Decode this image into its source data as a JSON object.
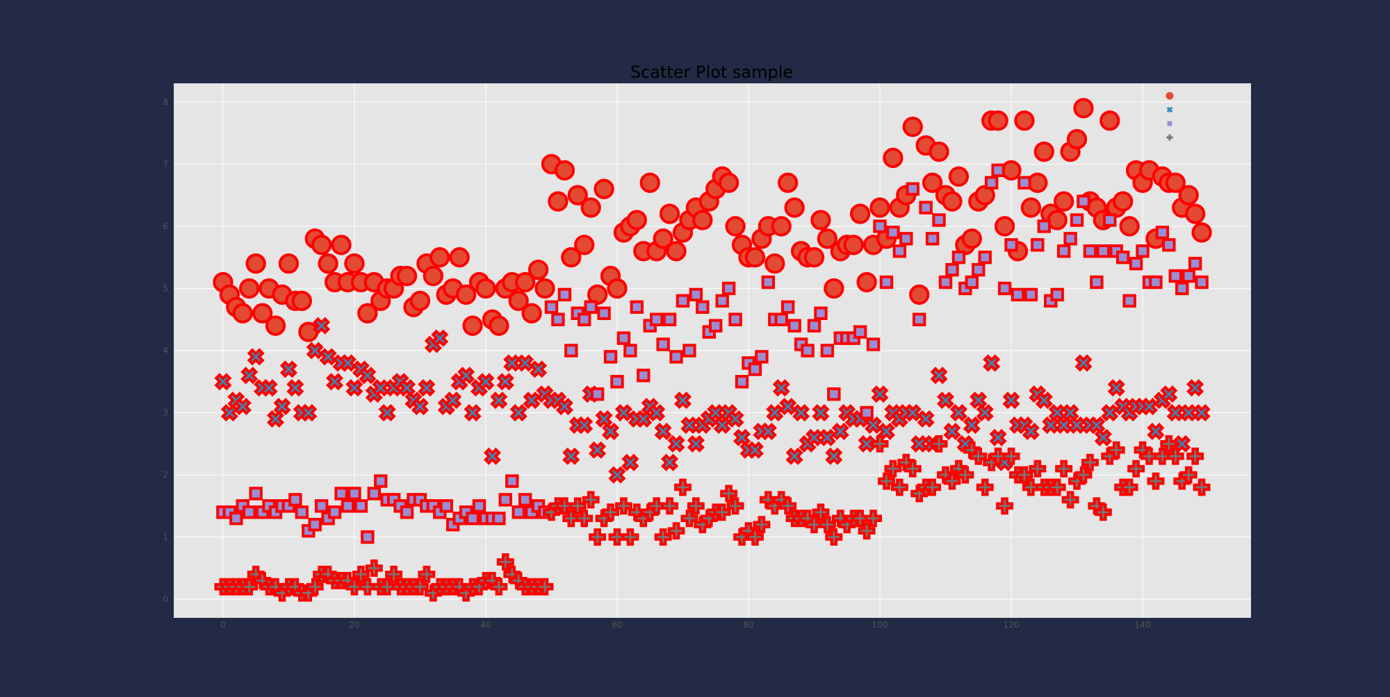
{
  "colors": {
    "page_background": "#222a45",
    "plot_background": "#e5e5e5",
    "grid": "#ffffff",
    "tick_label": "#555555",
    "marker_edge": "#ff0000",
    "series_colors": [
      "#e24a33",
      "#348abd",
      "#988ed5",
      "#777777"
    ]
  },
  "chart_data": {
    "type": "scatter",
    "title": "Scatter Plot sample",
    "xlabel": "",
    "ylabel": "",
    "xlim": [
      -7.5,
      156.5
    ],
    "ylim": [
      -0.3,
      8.3
    ],
    "xticks": [
      0,
      20,
      40,
      60,
      80,
      100,
      120,
      140
    ],
    "yticks": [
      0,
      1,
      2,
      3,
      4,
      5,
      6,
      7,
      8
    ],
    "grid": true,
    "legend_position": "top-right",
    "series": [
      {
        "marker": "circle",
        "x_start": 0,
        "values": [
          5.1,
          4.9,
          4.7,
          4.6,
          5.0,
          5.4,
          4.6,
          5.0,
          4.4,
          4.9,
          5.4,
          4.8,
          4.8,
          4.3,
          5.8,
          5.7,
          5.4,
          5.1,
          5.7,
          5.1,
          5.4,
          5.1,
          4.6,
          5.1,
          4.8,
          5.0,
          5.0,
          5.2,
          5.2,
          4.7,
          4.8,
          5.4,
          5.2,
          5.5,
          4.9,
          5.0,
          5.5,
          4.9,
          4.4,
          5.1,
          5.0,
          4.5,
          4.4,
          5.0,
          5.1,
          4.8,
          5.1,
          4.6,
          5.3,
          5.0,
          7.0,
          6.4,
          6.9,
          5.5,
          6.5,
          5.7,
          6.3,
          4.9,
          6.6,
          5.2,
          5.0,
          5.9,
          6.0,
          6.1,
          5.6,
          6.7,
          5.6,
          5.8,
          6.2,
          5.6,
          5.9,
          6.1,
          6.3,
          6.1,
          6.4,
          6.6,
          6.8,
          6.7,
          6.0,
          5.7,
          5.5,
          5.5,
          5.8,
          6.0,
          5.4,
          6.0,
          6.7,
          6.3,
          5.6,
          5.5,
          5.5,
          6.1,
          5.8,
          5.0,
          5.6,
          5.7,
          5.7,
          6.2,
          5.1,
          5.7,
          6.3,
          5.8,
          7.1,
          6.3,
          6.5,
          7.6,
          4.9,
          7.3,
          6.7,
          7.2,
          6.5,
          6.4,
          6.8,
          5.7,
          5.8,
          6.4,
          6.5,
          7.7,
          7.7,
          6.0,
          6.9,
          5.6,
          7.7,
          6.3,
          6.7,
          7.2,
          6.2,
          6.1,
          6.4,
          7.2,
          7.4,
          7.9,
          6.4,
          6.3,
          6.1,
          7.7,
          6.3,
          6.4,
          6.0,
          6.9,
          6.7,
          6.9,
          5.8,
          6.8,
          6.7,
          6.7,
          6.3,
          6.5,
          6.2,
          5.9
        ]
      },
      {
        "marker": "x",
        "x_start": 0,
        "values": [
          3.5,
          3.0,
          3.2,
          3.1,
          3.6,
          3.9,
          3.4,
          3.4,
          2.9,
          3.1,
          3.7,
          3.4,
          3.0,
          3.0,
          4.0,
          4.4,
          3.9,
          3.5,
          3.8,
          3.8,
          3.4,
          3.7,
          3.6,
          3.3,
          3.4,
          3.0,
          3.4,
          3.5,
          3.4,
          3.2,
          3.1,
          3.4,
          4.1,
          4.2,
          3.1,
          3.2,
          3.5,
          3.6,
          3.0,
          3.4,
          3.5,
          2.3,
          3.2,
          3.5,
          3.8,
          3.0,
          3.8,
          3.2,
          3.7,
          3.3,
          3.2,
          3.2,
          3.1,
          2.3,
          2.8,
          2.8,
          3.3,
          2.4,
          2.9,
          2.7,
          2.0,
          3.0,
          2.2,
          2.9,
          2.9,
          3.1,
          3.0,
          2.7,
          2.2,
          2.5,
          3.2,
          2.8,
          2.5,
          2.8,
          2.9,
          3.0,
          2.8,
          3.0,
          2.9,
          2.6,
          2.4,
          2.4,
          2.7,
          2.7,
          3.0,
          3.4,
          3.1,
          2.3,
          3.0,
          2.5,
          2.6,
          3.0,
          2.6,
          2.3,
          2.7,
          3.0,
          2.9,
          2.9,
          2.5,
          2.8,
          3.3,
          2.7,
          3.0,
          2.9,
          3.0,
          3.0,
          2.5,
          2.9,
          2.5,
          3.6,
          3.2,
          2.7,
          3.0,
          2.5,
          2.8,
          3.2,
          3.0,
          3.8,
          2.6,
          2.2,
          3.2,
          2.8,
          2.8,
          2.7,
          3.3,
          3.2,
          2.8,
          3.0,
          2.8,
          3.0,
          2.8,
          3.8,
          2.8,
          2.8,
          2.6,
          3.0,
          3.4,
          3.1,
          3.0,
          3.1,
          3.1,
          3.1,
          2.7,
          3.2,
          3.3,
          3.0,
          2.5,
          3.0,
          3.4,
          3.0
        ]
      },
      {
        "marker": "square",
        "x_start": 0,
        "values": [
          1.4,
          1.4,
          1.3,
          1.5,
          1.4,
          1.7,
          1.4,
          1.5,
          1.4,
          1.5,
          1.5,
          1.6,
          1.4,
          1.1,
          1.2,
          1.5,
          1.3,
          1.4,
          1.7,
          1.5,
          1.7,
          1.5,
          1.0,
          1.7,
          1.9,
          1.6,
          1.6,
          1.5,
          1.4,
          1.6,
          1.6,
          1.5,
          1.5,
          1.4,
          1.5,
          1.2,
          1.3,
          1.4,
          1.3,
          1.5,
          1.3,
          1.3,
          1.3,
          1.6,
          1.9,
          1.4,
          1.6,
          1.4,
          1.5,
          1.4,
          4.7,
          4.5,
          4.9,
          4.0,
          4.6,
          4.5,
          4.7,
          3.3,
          4.6,
          3.9,
          3.5,
          4.2,
          4.0,
          4.7,
          3.6,
          4.4,
          4.5,
          4.1,
          4.5,
          3.9,
          4.8,
          4.0,
          4.9,
          4.7,
          4.3,
          4.4,
          4.8,
          5.0,
          4.5,
          3.5,
          3.8,
          3.7,
          3.9,
          5.1,
          4.5,
          4.5,
          4.7,
          4.4,
          4.1,
          4.0,
          4.4,
          4.6,
          4.0,
          3.3,
          4.2,
          4.2,
          4.2,
          4.3,
          3.0,
          4.1,
          6.0,
          5.1,
          5.9,
          5.6,
          5.8,
          6.6,
          4.5,
          6.3,
          5.8,
          6.1,
          5.1,
          5.3,
          5.5,
          5.0,
          5.1,
          5.3,
          5.5,
          6.7,
          6.9,
          5.0,
          5.7,
          4.9,
          6.7,
          4.9,
          5.7,
          6.0,
          4.8,
          4.9,
          5.6,
          5.8,
          6.1,
          6.4,
          5.6,
          5.1,
          5.6,
          6.1,
          5.6,
          5.5,
          4.8,
          5.4,
          5.6,
          5.1,
          5.1,
          5.9,
          5.7,
          5.2,
          5.0,
          5.2,
          5.4,
          5.1
        ]
      },
      {
        "marker": "plus",
        "x_start": 0,
        "values": [
          0.2,
          0.2,
          0.2,
          0.2,
          0.2,
          0.4,
          0.3,
          0.2,
          0.2,
          0.1,
          0.2,
          0.2,
          0.1,
          0.1,
          0.2,
          0.4,
          0.4,
          0.3,
          0.3,
          0.3,
          0.2,
          0.4,
          0.2,
          0.5,
          0.2,
          0.2,
          0.4,
          0.2,
          0.2,
          0.2,
          0.2,
          0.4,
          0.1,
          0.2,
          0.2,
          0.2,
          0.2,
          0.1,
          0.2,
          0.2,
          0.3,
          0.3,
          0.2,
          0.6,
          0.4,
          0.3,
          0.2,
          0.2,
          0.2,
          0.2,
          1.4,
          1.5,
          1.5,
          1.3,
          1.5,
          1.3,
          1.6,
          1.0,
          1.3,
          1.4,
          1.0,
          1.5,
          1.0,
          1.4,
          1.3,
          1.4,
          1.5,
          1.0,
          1.5,
          1.1,
          1.8,
          1.3,
          1.5,
          1.2,
          1.3,
          1.4,
          1.4,
          1.7,
          1.5,
          1.0,
          1.1,
          1.0,
          1.2,
          1.6,
          1.5,
          1.6,
          1.5,
          1.3,
          1.3,
          1.3,
          1.2,
          1.4,
          1.2,
          1.0,
          1.3,
          1.2,
          1.3,
          1.3,
          1.1,
          1.3,
          2.5,
          1.9,
          2.1,
          1.8,
          2.2,
          2.1,
          1.7,
          1.8,
          1.8,
          2.5,
          2.0,
          1.9,
          2.1,
          2.0,
          2.4,
          2.3,
          1.8,
          2.2,
          2.3,
          1.5,
          2.3,
          2.0,
          2.0,
          1.8,
          2.1,
          1.8,
          1.8,
          1.8,
          2.1,
          1.6,
          1.9,
          2.0,
          2.2,
          1.5,
          1.4,
          2.3,
          2.4,
          1.8,
          1.8,
          2.1,
          2.4,
          2.3,
          1.9,
          2.3,
          2.5,
          2.3,
          1.9,
          2.0,
          2.3,
          1.8
        ]
      }
    ]
  }
}
